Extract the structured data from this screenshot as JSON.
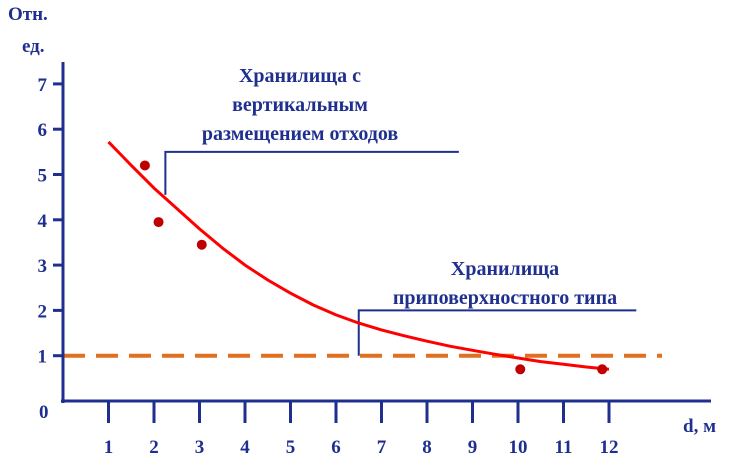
{
  "chart_data": {
    "type": "scatter",
    "title": "",
    "ylabel_line1": "Отн.",
    "ylabel_line2": "ед.",
    "xlabel": "d, м",
    "origin_label": "0",
    "xlim": [
      0,
      14
    ],
    "ylim": [
      0,
      8
    ],
    "x_ticks": [
      1,
      2,
      3,
      4,
      5,
      6,
      7,
      8,
      9,
      10,
      11,
      12
    ],
    "y_ticks": [
      1,
      2,
      3,
      4,
      5,
      6,
      7
    ],
    "points": [
      {
        "x": 1.8,
        "y": 5.2
      },
      {
        "x": 2.1,
        "y": 3.95
      },
      {
        "x": 3.05,
        "y": 3.45
      },
      {
        "x": 10.05,
        "y": 0.7
      },
      {
        "x": 11.85,
        "y": 0.7
      }
    ],
    "trend": {
      "type": "exponential-decay",
      "x": [
        1.0,
        1.5,
        2.0,
        2.5,
        3.0,
        3.5,
        4.0,
        4.5,
        5.0,
        5.5,
        6.0,
        6.5,
        7.0,
        7.5,
        8.0,
        8.5,
        9.0,
        9.5,
        10.0,
        10.5,
        11.0,
        11.5,
        12.0
      ],
      "y": [
        5.72,
        5.2,
        4.7,
        4.25,
        3.8,
        3.38,
        3.0,
        2.67,
        2.38,
        2.12,
        1.9,
        1.72,
        1.57,
        1.44,
        1.32,
        1.21,
        1.12,
        1.03,
        0.95,
        0.87,
        0.81,
        0.75,
        0.7
      ]
    },
    "reference_line": {
      "y": 1
    },
    "annotations": [
      {
        "lines": [
          "Хранилища с",
          "вертикальным",
          "размещением отходов"
        ],
        "anchor_x": 2.25,
        "anchor_y": 4.55,
        "elbow_y": 5.5,
        "end_x": 8.7
      },
      {
        "lines": [
          "Хранилища",
          "приповерхностного типа"
        ],
        "anchor_x": 6.5,
        "anchor_y": 1.0,
        "elbow_y": 2.0,
        "end_x": 12.6
      }
    ],
    "colors": {
      "axis": "#1f2f8f",
      "text": "#1f2f8f",
      "curve": "#ff0000",
      "points": "#c00000",
      "reference_line": "#e07020",
      "annotation_line": "#1f2f8f"
    },
    "grid": false
  }
}
